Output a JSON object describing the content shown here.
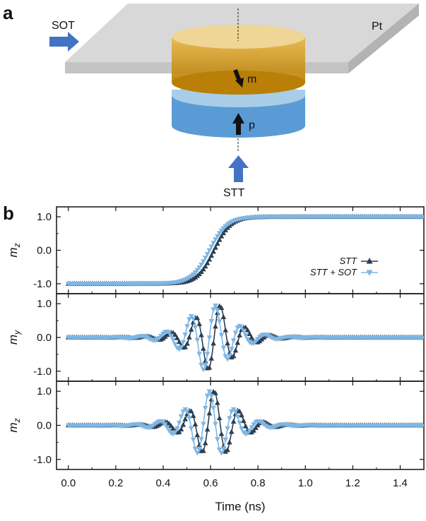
{
  "panel_a": {
    "letter": "a",
    "labels": {
      "sot": "SOT",
      "pt": "Pt",
      "stt": "STT",
      "m": "m",
      "p": "p"
    }
  },
  "panel_b": {
    "letter": "b"
  },
  "colors": {
    "stt": "#2b3f52",
    "stt_sot": "#7fb6e3",
    "pt_top": "#d8d8d8",
    "pt_side": "#bdbdbd",
    "free_layer_top": "#f0d9a0",
    "free_layer_side": "#d9a020",
    "spacer": "#a9cde8",
    "fixed_layer_top": "#6fa8dc",
    "fixed_layer_side": "#5b9bd5",
    "arrow_blue": "#4472c4"
  },
  "chart_data": [
    {
      "type": "line",
      "id": "mz_top",
      "ylabel": "mz",
      "xlim": [
        -0.05,
        1.5
      ],
      "ylim": [
        -1.15,
        1.15
      ],
      "yticks": [
        "-1.0",
        "0.0",
        "1.0"
      ],
      "yticks_values": [
        -1.0,
        0.0,
        1.0
      ],
      "legend": {
        "placement": "center-right",
        "entries": [
          "STT",
          "STT + SOT"
        ]
      },
      "series": [
        {
          "name": "STT",
          "model": "tanh",
          "center": 0.615,
          "width": 0.07,
          "marker": "triangle-up"
        },
        {
          "name": "STT + SOT",
          "model": "tanh",
          "center": 0.595,
          "width": 0.075,
          "marker": "triangle-down"
        }
      ]
    },
    {
      "type": "line",
      "id": "my_mid",
      "ylabel": "my",
      "xlim": [
        -0.05,
        1.5
      ],
      "ylim": [
        -1.15,
        1.15
      ],
      "yticks": [
        "-1.0",
        "0.0",
        "1.0"
      ],
      "yticks_values": [
        -1.0,
        0.0,
        1.0
      ],
      "series": [
        {
          "name": "STT",
          "model": "osc-sin",
          "period": 0.105,
          "center": 0.615,
          "width": 0.07,
          "marker": "triangle-up"
        },
        {
          "name": "STT + SOT",
          "model": "osc-sin",
          "period": 0.105,
          "center": 0.595,
          "width": 0.075,
          "marker": "triangle-down"
        }
      ]
    },
    {
      "type": "line",
      "id": "mz_bottom",
      "ylabel": "mz",
      "xlim": [
        -0.05,
        1.5
      ],
      "ylim": [
        -1.15,
        1.15
      ],
      "yticks": [
        "-1.0",
        "0.0",
        "1.0"
      ],
      "yticks_values": [
        -1.0,
        0.0,
        1.0
      ],
      "xlabel": "Time (ns)",
      "xticks": [
        "0.0",
        "0.2",
        "0.4",
        "0.6",
        "0.8",
        "1.0",
        "1.2",
        "1.4"
      ],
      "xticks_values": [
        0.0,
        0.2,
        0.4,
        0.6,
        0.8,
        1.0,
        1.2,
        1.4
      ],
      "series": [
        {
          "name": "STT",
          "model": "osc-cos",
          "period": 0.105,
          "center": 0.615,
          "width": 0.07,
          "marker": "triangle-up"
        },
        {
          "name": "STT + SOT",
          "model": "osc-cos",
          "period": 0.105,
          "center": 0.595,
          "width": 0.075,
          "marker": "triangle-down"
        }
      ]
    }
  ]
}
